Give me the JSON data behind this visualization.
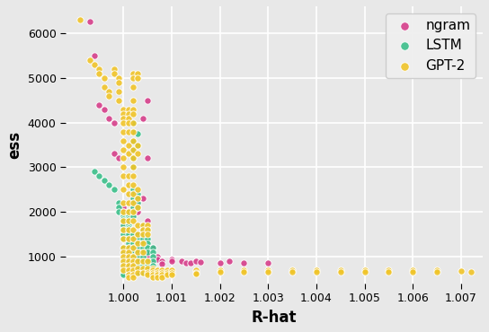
{
  "xlabel": "R-hat",
  "ylabel": "ess",
  "xlim": [
    0.9988,
    1.00745
  ],
  "ylim": [
    400,
    6600
  ],
  "xticks": [
    1.0,
    1.001,
    1.002,
    1.003,
    1.004,
    1.005,
    1.006,
    1.007
  ],
  "yticks": [
    1000,
    2000,
    3000,
    4000,
    5000,
    6000
  ],
  "background_color": "#e8e8e8",
  "grid_color": "#ffffff",
  "marker_size": 28,
  "linewidths": 0.7,
  "alpha": 0.9,
  "series": [
    {
      "label": "ngram",
      "color": "#d63e8a",
      "edgecolor": "#ffffff",
      "points": [
        [
          0.9993,
          6250
        ],
        [
          0.9994,
          5500
        ],
        [
          0.9995,
          4400
        ],
        [
          0.9996,
          4300
        ],
        [
          0.9997,
          4100
        ],
        [
          0.9998,
          4000
        ],
        [
          0.9998,
          3300
        ],
        [
          0.9999,
          3200
        ],
        [
          1.0,
          2100
        ],
        [
          1.0,
          2000
        ],
        [
          1.0,
          1950
        ],
        [
          1.0,
          1900
        ],
        [
          1.0,
          1800
        ],
        [
          1.0,
          1750
        ],
        [
          1.0001,
          2000
        ],
        [
          1.0001,
          1950
        ],
        [
          1.0001,
          1900
        ],
        [
          1.0001,
          1850
        ],
        [
          1.0001,
          1800
        ],
        [
          1.0001,
          1750
        ],
        [
          1.0001,
          1700
        ],
        [
          1.0001,
          1200
        ],
        [
          1.0001,
          1100
        ],
        [
          1.0001,
          950
        ],
        [
          1.0001,
          900
        ],
        [
          1.0001,
          850
        ],
        [
          1.0002,
          2100
        ],
        [
          1.0002,
          2050
        ],
        [
          1.0002,
          2000
        ],
        [
          1.0002,
          1950
        ],
        [
          1.0002,
          1500
        ],
        [
          1.0002,
          1400
        ],
        [
          1.0002,
          1100
        ],
        [
          1.0002,
          1000
        ],
        [
          1.0002,
          950
        ],
        [
          1.0002,
          900
        ],
        [
          1.0002,
          850
        ],
        [
          1.0003,
          2200
        ],
        [
          1.0003,
          2100
        ],
        [
          1.0003,
          2000
        ],
        [
          1.0003,
          1300
        ],
        [
          1.0003,
          1200
        ],
        [
          1.0003,
          1100
        ],
        [
          1.0003,
          1000
        ],
        [
          1.0003,
          900
        ],
        [
          1.0003,
          850
        ],
        [
          1.0004,
          4100
        ],
        [
          1.0004,
          2300
        ],
        [
          1.0004,
          1600
        ],
        [
          1.0004,
          1050
        ],
        [
          1.0004,
          950
        ],
        [
          1.0004,
          900
        ],
        [
          1.0005,
          3200
        ],
        [
          1.0005,
          1800
        ],
        [
          1.0005,
          1100
        ],
        [
          1.0005,
          1000
        ],
        [
          1.0006,
          1200
        ],
        [
          1.0006,
          900
        ],
        [
          1.0007,
          1000
        ],
        [
          1.0007,
          950
        ],
        [
          1.0008,
          900
        ],
        [
          1.0008,
          850
        ],
        [
          1.001,
          950
        ],
        [
          1.001,
          900
        ],
        [
          1.0005,
          4500
        ],
        [
          1.0012,
          900
        ],
        [
          1.0013,
          870
        ],
        [
          1.0014,
          860
        ],
        [
          1.0015,
          900
        ],
        [
          1.0016,
          880
        ],
        [
          1.002,
          870
        ],
        [
          1.0022,
          900
        ],
        [
          1.0025,
          860
        ],
        [
          1.003,
          870
        ]
      ]
    },
    {
      "label": "LSTM",
      "color": "#3bbf8a",
      "edgecolor": "#ffffff",
      "points": [
        [
          0.9994,
          2900
        ],
        [
          0.9995,
          2800
        ],
        [
          0.9996,
          2700
        ],
        [
          0.9997,
          2600
        ],
        [
          0.9998,
          2500
        ],
        [
          0.9999,
          2200
        ],
        [
          0.9999,
          2100
        ],
        [
          0.9999,
          2000
        ],
        [
          1.0,
          1950
        ],
        [
          1.0,
          1900
        ],
        [
          1.0,
          1850
        ],
        [
          1.0,
          1800
        ],
        [
          1.0,
          1700
        ],
        [
          1.0,
          1600
        ],
        [
          1.0,
          1500
        ],
        [
          1.0,
          1400
        ],
        [
          1.0,
          1200
        ],
        [
          1.0,
          1100
        ],
        [
          1.0,
          950
        ],
        [
          1.0,
          850
        ],
        [
          1.0,
          750
        ],
        [
          1.0,
          700
        ],
        [
          1.0,
          650
        ],
        [
          1.0,
          600
        ],
        [
          1.0001,
          2000
        ],
        [
          1.0001,
          1950
        ],
        [
          1.0001,
          1900
        ],
        [
          1.0001,
          1850
        ],
        [
          1.0001,
          1800
        ],
        [
          1.0001,
          1750
        ],
        [
          1.0001,
          1700
        ],
        [
          1.0001,
          1650
        ],
        [
          1.0001,
          1600
        ],
        [
          1.0001,
          1550
        ],
        [
          1.0001,
          1500
        ],
        [
          1.0001,
          1400
        ],
        [
          1.0001,
          1300
        ],
        [
          1.0001,
          1200
        ],
        [
          1.0001,
          1100
        ],
        [
          1.0001,
          1000
        ],
        [
          1.0001,
          900
        ],
        [
          1.0001,
          800
        ],
        [
          1.0001,
          700
        ],
        [
          1.0001,
          650
        ],
        [
          1.0001,
          600
        ],
        [
          1.0002,
          4000
        ],
        [
          1.0002,
          3800
        ],
        [
          1.0002,
          3600
        ],
        [
          1.0002,
          3400
        ],
        [
          1.0002,
          3200
        ],
        [
          1.0002,
          3000
        ],
        [
          1.0002,
          2500
        ],
        [
          1.0002,
          2400
        ],
        [
          1.0002,
          2300
        ],
        [
          1.0002,
          2200
        ],
        [
          1.0002,
          2100
        ],
        [
          1.0002,
          2000
        ],
        [
          1.0002,
          1900
        ],
        [
          1.0002,
          1500
        ],
        [
          1.0002,
          1400
        ],
        [
          1.0002,
          1300
        ],
        [
          1.0002,
          1200
        ],
        [
          1.0002,
          1100
        ],
        [
          1.0002,
          1000
        ],
        [
          1.0002,
          900
        ],
        [
          1.0002,
          800
        ],
        [
          1.0002,
          700
        ],
        [
          1.0002,
          650
        ],
        [
          1.0002,
          600
        ],
        [
          1.0003,
          3750
        ],
        [
          1.0003,
          3500
        ],
        [
          1.0003,
          2400
        ],
        [
          1.0003,
          2300
        ],
        [
          1.0003,
          2200
        ],
        [
          1.0003,
          2100
        ],
        [
          1.0003,
          1500
        ],
        [
          1.0003,
          1400
        ],
        [
          1.0003,
          1300
        ],
        [
          1.0003,
          1200
        ],
        [
          1.0003,
          1100
        ],
        [
          1.0003,
          1000
        ],
        [
          1.0003,
          900
        ],
        [
          1.0003,
          800
        ],
        [
          1.0003,
          700
        ],
        [
          1.0003,
          650
        ],
        [
          1.0004,
          1700
        ],
        [
          1.0004,
          1600
        ],
        [
          1.0004,
          1500
        ],
        [
          1.0004,
          1400
        ],
        [
          1.0004,
          1300
        ],
        [
          1.0004,
          1200
        ],
        [
          1.0004,
          1100
        ],
        [
          1.0004,
          1000
        ],
        [
          1.0004,
          900
        ],
        [
          1.0004,
          800
        ],
        [
          1.0004,
          700
        ],
        [
          1.0004,
          650
        ],
        [
          1.0005,
          1600
        ],
        [
          1.0005,
          1400
        ],
        [
          1.0005,
          1300
        ],
        [
          1.0005,
          1200
        ],
        [
          1.0005,
          1100
        ],
        [
          1.0005,
          900
        ],
        [
          1.0005,
          800
        ],
        [
          1.0005,
          700
        ],
        [
          1.0005,
          650
        ],
        [
          1.0006,
          1200
        ],
        [
          1.0006,
          1100
        ],
        [
          1.0006,
          1000
        ],
        [
          1.0006,
          900
        ],
        [
          1.0006,
          800
        ],
        [
          1.0006,
          700
        ]
      ]
    },
    {
      "label": "GPT-2",
      "color": "#f0c429",
      "edgecolor": "#ffffff",
      "points": [
        [
          0.9991,
          6300
        ],
        [
          0.9993,
          5400
        ],
        [
          0.9994,
          5300
        ],
        [
          0.9995,
          5200
        ],
        [
          0.9995,
          5100
        ],
        [
          0.9996,
          5000
        ],
        [
          0.9996,
          4800
        ],
        [
          0.9997,
          4700
        ],
        [
          0.9997,
          4600
        ],
        [
          0.9998,
          5200
        ],
        [
          0.9998,
          5100
        ],
        [
          0.9999,
          5000
        ],
        [
          0.9999,
          4900
        ],
        [
          0.9999,
          4700
        ],
        [
          0.9999,
          4500
        ],
        [
          1.0,
          4300
        ],
        [
          1.0,
          4200
        ],
        [
          1.0,
          4100
        ],
        [
          1.0,
          4000
        ],
        [
          1.0,
          3800
        ],
        [
          1.0,
          3600
        ],
        [
          1.0,
          3400
        ],
        [
          1.0,
          3200
        ],
        [
          1.0,
          3000
        ],
        [
          1.0,
          2800
        ],
        [
          1.0,
          2500
        ],
        [
          1.0,
          2200
        ],
        [
          1.0,
          2000
        ],
        [
          1.0,
          1800
        ],
        [
          1.0,
          1600
        ],
        [
          1.0,
          1400
        ],
        [
          1.0,
          1200
        ],
        [
          1.0,
          1100
        ],
        [
          1.0,
          1000
        ],
        [
          1.0,
          900
        ],
        [
          1.0,
          800
        ],
        [
          1.0,
          700
        ],
        [
          1.0001,
          4300
        ],
        [
          1.0001,
          4200
        ],
        [
          1.0001,
          4100
        ],
        [
          1.0001,
          4000
        ],
        [
          1.0001,
          3800
        ],
        [
          1.0001,
          3500
        ],
        [
          1.0001,
          3300
        ],
        [
          1.0001,
          2800
        ],
        [
          1.0001,
          2600
        ],
        [
          1.0001,
          2400
        ],
        [
          1.0001,
          2200
        ],
        [
          1.0001,
          2000
        ],
        [
          1.0001,
          1800
        ],
        [
          1.0001,
          1600
        ],
        [
          1.0001,
          1400
        ],
        [
          1.0001,
          1200
        ],
        [
          1.0001,
          1100
        ],
        [
          1.0001,
          1000
        ],
        [
          1.0001,
          900
        ],
        [
          1.0001,
          800
        ],
        [
          1.0001,
          700
        ],
        [
          1.0001,
          600
        ],
        [
          1.0001,
          550
        ],
        [
          1.0002,
          5100
        ],
        [
          1.0002,
          5000
        ],
        [
          1.0002,
          4800
        ],
        [
          1.0002,
          4500
        ],
        [
          1.0002,
          4300
        ],
        [
          1.0002,
          4200
        ],
        [
          1.0002,
          4000
        ],
        [
          1.0002,
          3800
        ],
        [
          1.0002,
          3600
        ],
        [
          1.0002,
          3400
        ],
        [
          1.0002,
          3200
        ],
        [
          1.0002,
          3000
        ],
        [
          1.0002,
          2800
        ],
        [
          1.0002,
          2600
        ],
        [
          1.0002,
          2400
        ],
        [
          1.0002,
          2200
        ],
        [
          1.0002,
          2000
        ],
        [
          1.0002,
          1800
        ],
        [
          1.0002,
          1600
        ],
        [
          1.0002,
          1400
        ],
        [
          1.0002,
          1200
        ],
        [
          1.0002,
          1000
        ],
        [
          1.0002,
          900
        ],
        [
          1.0002,
          800
        ],
        [
          1.0002,
          700
        ],
        [
          1.0002,
          600
        ],
        [
          1.0002,
          550
        ],
        [
          1.0003,
          5100
        ],
        [
          1.0003,
          5000
        ],
        [
          1.0003,
          3500
        ],
        [
          1.0003,
          3300
        ],
        [
          1.0003,
          2500
        ],
        [
          1.0003,
          2300
        ],
        [
          1.0003,
          2100
        ],
        [
          1.0003,
          1700
        ],
        [
          1.0003,
          1500
        ],
        [
          1.0003,
          1300
        ],
        [
          1.0003,
          1100
        ],
        [
          1.0003,
          900
        ],
        [
          1.0003,
          750
        ],
        [
          1.0003,
          650
        ],
        [
          1.0004,
          1700
        ],
        [
          1.0004,
          1600
        ],
        [
          1.0004,
          1500
        ],
        [
          1.0004,
          1300
        ],
        [
          1.0004,
          1100
        ],
        [
          1.0004,
          900
        ],
        [
          1.0004,
          750
        ],
        [
          1.0004,
          650
        ],
        [
          1.0005,
          1700
        ],
        [
          1.0005,
          1600
        ],
        [
          1.0005,
          1500
        ],
        [
          1.0005,
          900
        ],
        [
          1.0005,
          750
        ],
        [
          1.0005,
          650
        ],
        [
          1.0005,
          600
        ],
        [
          1.0006,
          750
        ],
        [
          1.0006,
          700
        ],
        [
          1.0006,
          650
        ],
        [
          1.0006,
          600
        ],
        [
          1.0006,
          550
        ],
        [
          1.0007,
          700
        ],
        [
          1.0007,
          650
        ],
        [
          1.0007,
          600
        ],
        [
          1.0007,
          550
        ],
        [
          1.0008,
          700
        ],
        [
          1.0008,
          650
        ],
        [
          1.0008,
          600
        ],
        [
          1.0008,
          550
        ],
        [
          1.0009,
          700
        ],
        [
          1.0009,
          650
        ],
        [
          1.0009,
          600
        ],
        [
          1.001,
          700
        ],
        [
          1.001,
          650
        ],
        [
          1.001,
          600
        ],
        [
          1.0015,
          700
        ],
        [
          1.0015,
          650
        ],
        [
          1.0015,
          620
        ],
        [
          1.002,
          700
        ],
        [
          1.002,
          660
        ],
        [
          1.0025,
          700
        ],
        [
          1.0025,
          660
        ],
        [
          1.003,
          700
        ],
        [
          1.003,
          660
        ],
        [
          1.0035,
          700
        ],
        [
          1.0035,
          660
        ],
        [
          1.004,
          700
        ],
        [
          1.004,
          660
        ],
        [
          1.0045,
          700
        ],
        [
          1.0045,
          660
        ],
        [
          1.005,
          700
        ],
        [
          1.005,
          660
        ],
        [
          1.0055,
          700
        ],
        [
          1.0055,
          660
        ],
        [
          1.006,
          700
        ],
        [
          1.006,
          660
        ],
        [
          1.0065,
          700
        ],
        [
          1.0065,
          660
        ],
        [
          1.007,
          680
        ],
        [
          1.0072,
          660
        ]
      ]
    }
  ]
}
